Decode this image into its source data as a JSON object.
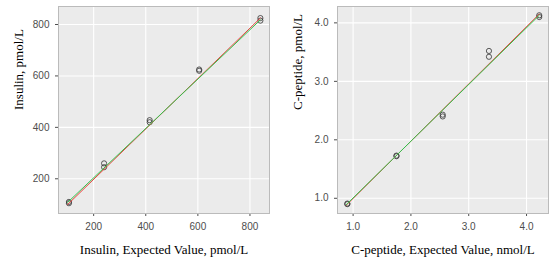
{
  "chart_data": [
    {
      "type": "scatter",
      "x_label": "Insulin, Expected Value, pmol/L",
      "y_label": "Insulin, pmol/L",
      "xlim": [
        65,
        875
      ],
      "ylim": [
        65,
        870
      ],
      "xticks": [
        200,
        400,
        600,
        800
      ],
      "yticks": [
        200,
        400,
        600,
        800
      ],
      "grid": true,
      "series": [
        {
          "type": "scatter",
          "marker": "circle",
          "color": "#333333",
          "x": [
            105,
            105,
            240,
            240,
            415,
            415,
            605,
            605,
            840,
            840
          ],
          "values": [
            105,
            110,
            245,
            260,
            420,
            428,
            620,
            625,
            815,
            825
          ]
        },
        {
          "type": "line",
          "color": "#e8413c",
          "x": [
            100,
            840
          ],
          "values": [
            100,
            825
          ]
        },
        {
          "type": "line",
          "color": "#33c24d",
          "x": [
            100,
            840
          ],
          "values": [
            108,
            818
          ]
        }
      ]
    },
    {
      "type": "scatter",
      "x_label": "C-peptide, Expected Value, nmol/L",
      "y_label": "C-peptide, pmol/L",
      "xlim": [
        0.73,
        4.38
      ],
      "ylim": [
        0.74,
        4.28
      ],
      "xticks": [
        1,
        2,
        3,
        4
      ],
      "yticks": [
        1,
        2,
        3,
        4
      ],
      "grid": true,
      "series": [
        {
          "type": "scatter",
          "marker": "circle",
          "color": "#333333",
          "x": [
            0.9,
            0.9,
            1.75,
            1.75,
            2.55,
            2.55,
            3.35,
            3.35,
            4.22,
            4.22
          ],
          "values": [
            0.9,
            0.91,
            1.72,
            1.73,
            2.4,
            2.43,
            3.42,
            3.52,
            4.1,
            4.13
          ]
        },
        {
          "type": "line",
          "color": "#e8413c",
          "x": [
            0.88,
            4.22
          ],
          "values": [
            0.88,
            4.15
          ]
        },
        {
          "type": "line",
          "color": "#33c24d",
          "x": [
            0.88,
            4.22
          ],
          "values": [
            0.89,
            4.13
          ]
        }
      ]
    }
  ]
}
